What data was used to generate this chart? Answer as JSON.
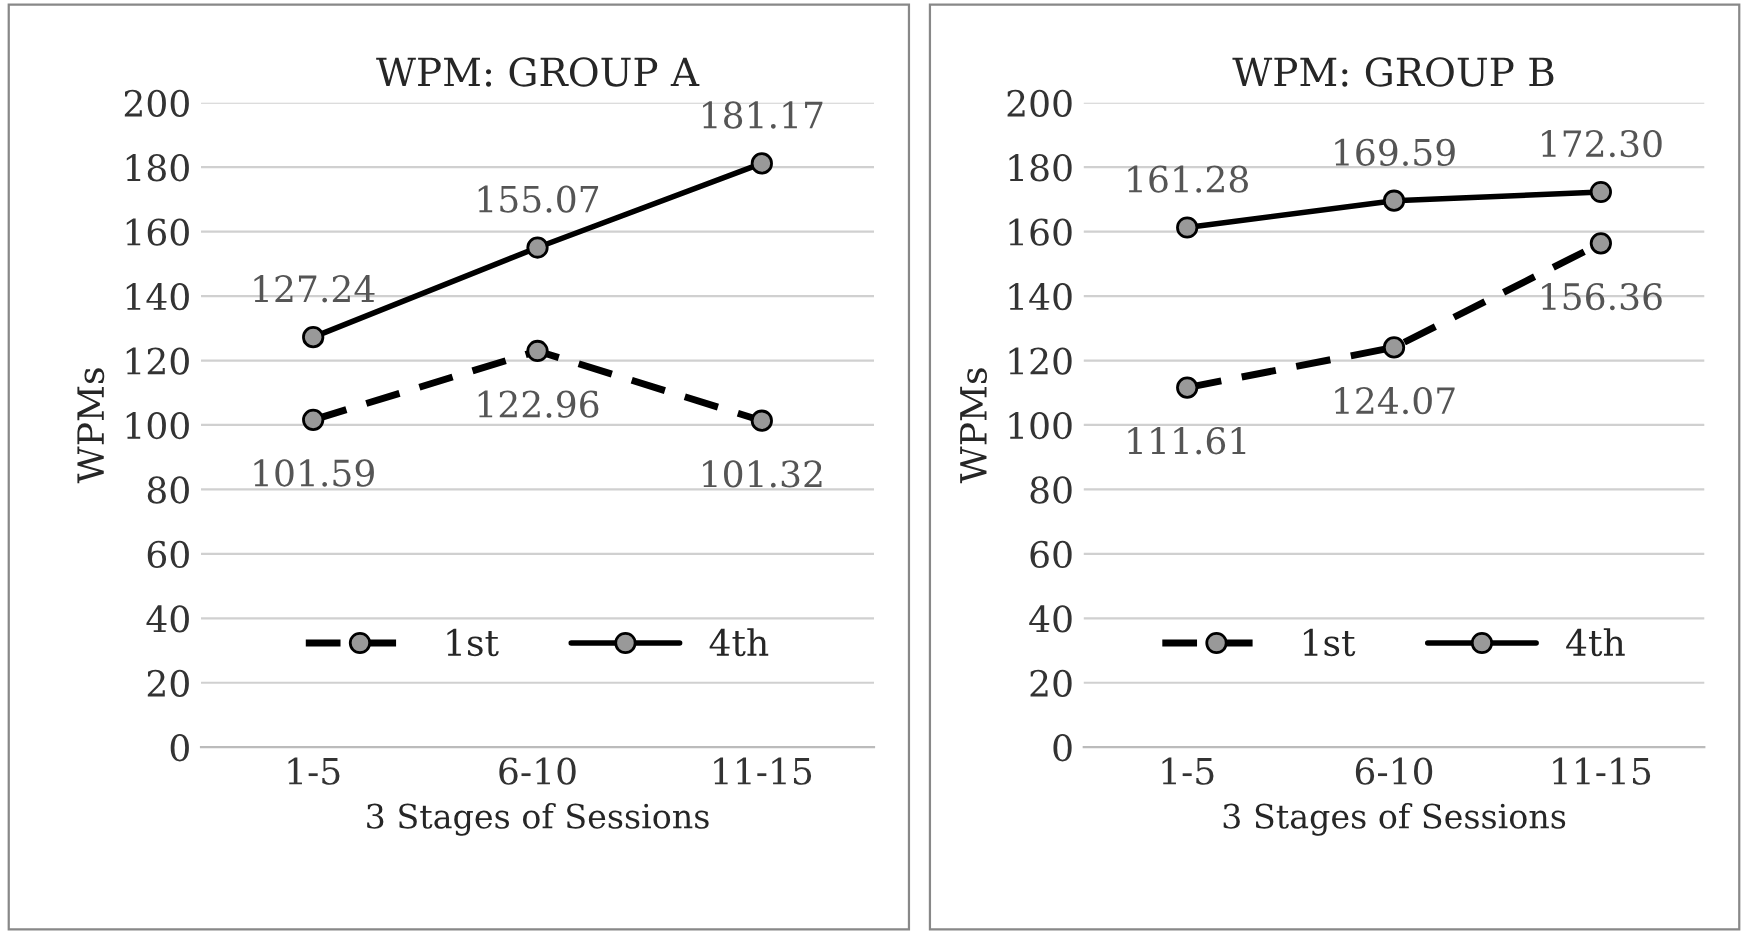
{
  "chart_data": [
    {
      "type": "line",
      "title": "WPM: GROUP A",
      "xlabel": "3 Stages of Sessions",
      "ylabel": "WPMs",
      "categories": [
        "1-5",
        "6-10",
        "11-15"
      ],
      "ylim": [
        0,
        200
      ],
      "yticks": [
        0,
        20,
        40,
        60,
        80,
        100,
        120,
        140,
        160,
        180,
        200
      ],
      "grid": "y",
      "legend": "bottom",
      "marker": "circle",
      "series": [
        {
          "name": "1st",
          "color": "#000000",
          "line_style": "dashed",
          "values": [
            101.59,
            122.96,
            101.32
          ],
          "value_labels": [
            "101.59",
            "122.96",
            "101.32"
          ]
        },
        {
          "name": "4th",
          "color": "#000000",
          "line_style": "solid",
          "values": [
            127.24,
            155.07,
            181.17
          ],
          "value_labels": [
            "127.24",
            "155.07",
            "181.17"
          ]
        }
      ]
    },
    {
      "type": "line",
      "title": "WPM: GROUP B",
      "xlabel": "3 Stages of Sessions",
      "ylabel": "WPMs",
      "categories": [
        "1-5",
        "6-10",
        "11-15"
      ],
      "ylim": [
        0,
        200
      ],
      "yticks": [
        0,
        20,
        40,
        60,
        80,
        100,
        120,
        140,
        160,
        180,
        200
      ],
      "grid": "y",
      "legend": "bottom",
      "marker": "circle",
      "series": [
        {
          "name": "1st",
          "color": "#000000",
          "line_style": "dashed",
          "values": [
            111.61,
            124.07,
            156.36
          ],
          "value_labels": [
            "111.61",
            "124.07",
            "156.36"
          ]
        },
        {
          "name": "4th",
          "color": "#000000",
          "line_style": "solid",
          "values": [
            161.28,
            169.59,
            172.3
          ],
          "value_labels": [
            "161.28",
            "169.59",
            "172.30"
          ]
        }
      ]
    }
  ]
}
